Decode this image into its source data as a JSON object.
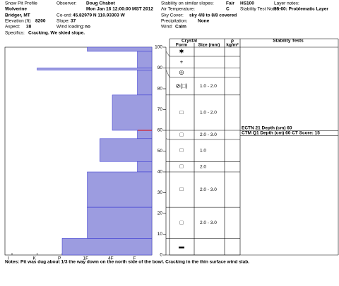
{
  "fields": [
    {
      "label": "Snow Pit Profile"
    },
    {
      "value": "Wolverine"
    },
    {
      "value": "Bridger, MT"
    },
    {
      "label": "Elevation (ft)",
      "value": "8200"
    },
    {
      "label": "Aspect:",
      "value": "38"
    },
    {
      "label": "Specifics:",
      "value": "Cracking. We skied slope."
    },
    {
      "label": "Observer:",
      "value": "Doug Chabot"
    },
    {
      "value": "Mon Jan 16 12:00:00 MST 2012"
    },
    {
      "label": "Co-ord:",
      "value": "45.82979 N 110.93303 W"
    },
    {
      "label": "Slope:",
      "value": "37"
    },
    {
      "label": "Wind loading:",
      "value": "no"
    },
    {
      "label": "Stability on similar slopes:",
      "value": "Fair"
    },
    {
      "label": "Air Temperature:",
      "value": "C"
    },
    {
      "label": "Sky Cover:",
      "value": "sky 4/8 to 8/8 covered"
    },
    {
      "label": "Precipitation:",
      "value": "None"
    },
    {
      "label": "Wind:",
      "value": "Calm"
    },
    {
      "value": "HS100"
    },
    {
      "label": "Stability Test Notes:"
    },
    {
      "label": "Layer notes:"
    },
    {
      "value": "55-60: Problematic Layer"
    }
  ],
  "chart_data": {
    "type": "snow-profile",
    "ylim": [
      0,
      100
    ],
    "yticks": [
      0,
      10,
      20,
      30,
      40,
      50,
      60,
      70,
      80,
      90,
      100
    ],
    "hardness_scale": [
      "I",
      "K",
      "P",
      "1F",
      "4F",
      "F"
    ],
    "bar_color": "#9c9ce0",
    "line_color": "#3030d0",
    "problem_color": "#e00000",
    "problem_depth": 60,
    "columns": {
      "crystal": "Crystal",
      "form": "Form",
      "size": "Size (mm)",
      "density": "ρ",
      "density_unit": "kg/m³",
      "tests": "Stability Tests"
    },
    "layers": [
      {
        "top": 100,
        "bottom": 98,
        "hardness": "1F",
        "form": "✱"
      },
      {
        "top": 98,
        "bottom": 90,
        "hardness": "F",
        "form": "+"
      },
      {
        "top": 90,
        "bottom": 89,
        "hardness": "K",
        "form": "◎"
      },
      {
        "top": 89,
        "bottom": 77,
        "hardness": "F",
        "form": "⊘(□)",
        "size": "1.0 - 2.0"
      },
      {
        "top": 77,
        "bottom": 60,
        "hardness": "4F",
        "form": "□",
        "size": "1.0 - 2.0"
      },
      {
        "top": 60,
        "bottom": 56,
        "hardness": "F",
        "form": "□",
        "size": "2.0 - 3.0"
      },
      {
        "top": 56,
        "bottom": 45,
        "hardness": "4F-1F",
        "form": "□",
        "size": "1.0"
      },
      {
        "top": 45,
        "bottom": 40,
        "hardness": "F",
        "form": "□",
        "size": "2.0"
      },
      {
        "top": 40,
        "bottom": 23,
        "hardness": "1F",
        "form": "□",
        "size": "2.0 - 3.0"
      },
      {
        "top": 23,
        "bottom": 8,
        "hardness": "1F",
        "form": "□",
        "size": "2.0 - 3.0"
      },
      {
        "top": 8,
        "bottom": 0,
        "hardness": "P",
        "form": "▬"
      }
    ],
    "stability_tests": [
      "ECTN 21  Depth (cm) 60",
      "CTM Q1 Depth (cm) 60 CT Score: 15"
    ]
  },
  "notes": "Notes: Pit was dug about 1/3 the way down on the north side of the bowl. Cracking in the thin surface wind slab."
}
